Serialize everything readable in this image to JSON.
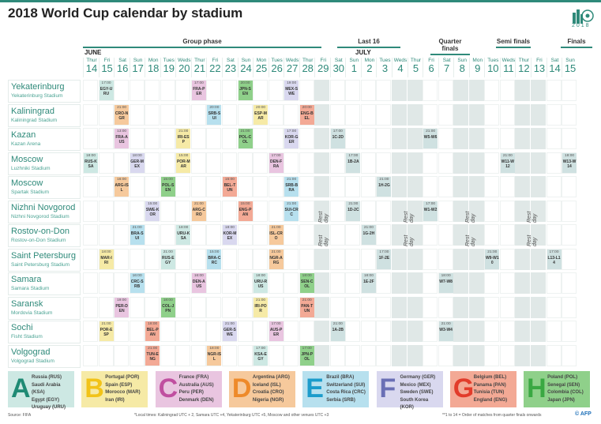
{
  "title": "2018 World Cup calendar by stadium",
  "logo_year": "2018",
  "phases": [
    "Group phase",
    "Last 16",
    "Quarter finals",
    "Semi finals",
    "Finals"
  ],
  "months": [
    "JUNE",
    "JULY"
  ],
  "rest_day_label": "Rest day",
  "colors": {
    "A": "#cde8e3",
    "B": "#f6eaa6",
    "C": "#e9c5e0",
    "D": "#f6c99c",
    "E": "#b7e0ee",
    "F": "#d9d8ef",
    "G": "#f3a995",
    "H": "#8fd08a",
    "KO": "#cfe1e1"
  },
  "legend_colors": {
    "A": "#1f8a74",
    "B": "#f2c318",
    "C": "#c04fa0",
    "D": "#ee8a2a",
    "E": "#1c9ccb",
    "F": "#6a6fb5",
    "G": "#e23c2b",
    "H": "#3aa842"
  },
  "chart_data": {
    "type": "table",
    "title": "2018 World Cup calendar by stadium",
    "days": [
      {
        "k": "J14",
        "name": "Thur",
        "num": "14"
      },
      {
        "k": "J15",
        "name": "Fri",
        "num": "15"
      },
      {
        "k": "J16",
        "name": "Sat",
        "num": "16"
      },
      {
        "k": "J17",
        "name": "Sun",
        "num": "17"
      },
      {
        "k": "J18",
        "name": "Mon",
        "num": "18"
      },
      {
        "k": "J19",
        "name": "Tues",
        "num": "19"
      },
      {
        "k": "J20",
        "name": "Weds",
        "num": "20"
      },
      {
        "k": "J21",
        "name": "Thur",
        "num": "21"
      },
      {
        "k": "J22",
        "name": "Fri",
        "num": "22"
      },
      {
        "k": "J23",
        "name": "Sat",
        "num": "23"
      },
      {
        "k": "J24",
        "name": "Sun",
        "num": "24"
      },
      {
        "k": "J25",
        "name": "Mon",
        "num": "25"
      },
      {
        "k": "J26",
        "name": "Tues",
        "num": "26"
      },
      {
        "k": "J27",
        "name": "Weds",
        "num": "27"
      },
      {
        "k": "J28",
        "name": "Thur",
        "num": "28"
      },
      {
        "k": "J29",
        "name": "Fri",
        "num": "29",
        "rest": true
      },
      {
        "k": "J30",
        "name": "Sat",
        "num": "30"
      },
      {
        "k": "L1",
        "name": "Sun",
        "num": "1"
      },
      {
        "k": "L2",
        "name": "Mon",
        "num": "2"
      },
      {
        "k": "L3",
        "name": "Tues",
        "num": "3"
      },
      {
        "k": "L4",
        "name": "Weds",
        "num": "4",
        "rest": true
      },
      {
        "k": "L5",
        "name": "Thur",
        "num": "5",
        "rest": true
      },
      {
        "k": "L6",
        "name": "Fri",
        "num": "6"
      },
      {
        "k": "L7",
        "name": "Sat",
        "num": "7"
      },
      {
        "k": "L8",
        "name": "Sun",
        "num": "8",
        "rest": true
      },
      {
        "k": "L9",
        "name": "Mon",
        "num": "9",
        "rest": true
      },
      {
        "k": "L10",
        "name": "Tues",
        "num": "10"
      },
      {
        "k": "L11",
        "name": "Weds",
        "num": "11"
      },
      {
        "k": "L12",
        "name": "Thur",
        "num": "12",
        "rest": true
      },
      {
        "k": "L13",
        "name": "Fri",
        "num": "13",
        "rest": true
      },
      {
        "k": "L14",
        "name": "Sat",
        "num": "14"
      },
      {
        "k": "L15",
        "name": "Sun",
        "num": "15"
      }
    ],
    "stadiums": [
      {
        "city": "Yekaterinburg",
        "stadium": "Yekaterinburg Stadium",
        "matches": [
          {
            "d": "J15",
            "t": "17:00",
            "m": "EGY-URU",
            "g": "A"
          },
          {
            "d": "J21",
            "t": "17:00",
            "m": "FRA-PER",
            "g": "C"
          },
          {
            "d": "J24",
            "t": "20:00",
            "m": "JPN-SEN",
            "g": "H"
          },
          {
            "d": "J27",
            "t": "19:00",
            "m": "MEX-SWE",
            "g": "F"
          }
        ]
      },
      {
        "city": "Kaliningrad",
        "stadium": "Kaliningrad Stadium",
        "matches": [
          {
            "d": "J16",
            "t": "21:00",
            "m": "CRO-NGR",
            "g": "D"
          },
          {
            "d": "J22",
            "t": "20:00",
            "m": "SRB-SUI",
            "g": "E"
          },
          {
            "d": "J25",
            "t": "20:00",
            "m": "ESP-MAR",
            "g": "B"
          },
          {
            "d": "J28",
            "t": "20:00",
            "m": "ENG-BEL",
            "g": "G"
          }
        ]
      },
      {
        "city": "Kazan",
        "stadium": "Kazan Arena",
        "matches": [
          {
            "d": "J16",
            "t": "13:00",
            "m": "FRA-AUS",
            "g": "C"
          },
          {
            "d": "J20",
            "t": "21:00",
            "m": "IRI-ESP",
            "g": "B"
          },
          {
            "d": "J24",
            "t": "21:00",
            "m": "POL-COL",
            "g": "H"
          },
          {
            "d": "J27",
            "t": "17:00",
            "m": "KOR-GER",
            "g": "F"
          },
          {
            "d": "J30",
            "t": "17:00",
            "m": "1C-2D",
            "g": "KO"
          },
          {
            "d": "L6",
            "t": "21:00",
            "m": "W5-W6",
            "g": "KO"
          }
        ]
      },
      {
        "city": "Moscow",
        "stadium": "Luzhniki Stadium",
        "matches": [
          {
            "d": "J14",
            "t": "18:00",
            "m": "RUS-KSA",
            "g": "A"
          },
          {
            "d": "J17",
            "t": "18:00",
            "m": "GER-MEX",
            "g": "F"
          },
          {
            "d": "J20",
            "t": "15:00",
            "m": "POR-MAR",
            "g": "B"
          },
          {
            "d": "J26",
            "t": "17:00",
            "m": "DEN-FRA",
            "g": "C"
          },
          {
            "d": "L1",
            "t": "17:00",
            "m": "1B-2A",
            "g": "KO"
          },
          {
            "d": "L11",
            "t": "21:00",
            "m": "W11-W12",
            "g": "KO"
          },
          {
            "d": "L15",
            "t": "18:00",
            "m": "W13-W14",
            "g": "KO"
          }
        ]
      },
      {
        "city": "Moscow",
        "stadium": "Spartak Stadium",
        "matches": [
          {
            "d": "J16",
            "t": "16:00",
            "m": "ARG-ISL",
            "g": "D"
          },
          {
            "d": "J19",
            "t": "15:00",
            "m": "POL-SEN",
            "g": "H"
          },
          {
            "d": "J23",
            "t": "15:00",
            "m": "BEL-TUN",
            "g": "G"
          },
          {
            "d": "J27",
            "t": "21:00",
            "m": "SRB-BRA",
            "g": "E"
          },
          {
            "d": "L3",
            "t": "21:00",
            "m": "1H-2G",
            "g": "KO"
          }
        ]
      },
      {
        "city": "Nizhni Novgorod",
        "stadium": "Nizhni Novgorod Stadium",
        "rest_labels": true,
        "matches": [
          {
            "d": "J18",
            "t": "15:00",
            "m": "SWE-KOR",
            "g": "F"
          },
          {
            "d": "J21",
            "t": "21:00",
            "m": "ARG-CRO",
            "g": "D"
          },
          {
            "d": "J24",
            "t": "15:00",
            "m": "ENG-PAN",
            "g": "G"
          },
          {
            "d": "J27",
            "t": "21:00",
            "m": "SUI-CRC",
            "g": "E"
          },
          {
            "d": "L1",
            "t": "21:00",
            "m": "1D-2C",
            "g": "KO"
          },
          {
            "d": "L6",
            "t": "17:00",
            "m": "W1-W2",
            "g": "KO"
          }
        ]
      },
      {
        "city": "Rostov-on-Don",
        "stadium": "Rostov-on-Don Stadium",
        "matches": [
          {
            "d": "J17",
            "t": "21:00",
            "m": "BRA-SUI",
            "g": "E"
          },
          {
            "d": "J20",
            "t": "18:00",
            "m": "URU-KSA",
            "g": "A"
          },
          {
            "d": "J23",
            "t": "18:00",
            "m": "KOR-MEX",
            "g": "F"
          },
          {
            "d": "J26",
            "t": "21:00",
            "m": "ISL-CRO",
            "g": "D"
          },
          {
            "d": "L2",
            "t": "21:00",
            "m": "1G-2H",
            "g": "KO"
          }
        ]
      },
      {
        "city": "Saint Petersburg",
        "stadium": "Saint Petersburg Stadium",
        "matches": [
          {
            "d": "J15",
            "t": "18:00",
            "m": "MAR-IRI",
            "g": "B"
          },
          {
            "d": "J19",
            "t": "21:00",
            "m": "RUS-EGY",
            "g": "A"
          },
          {
            "d": "J22",
            "t": "15:00",
            "m": "BRA-CRC",
            "g": "E"
          },
          {
            "d": "J26",
            "t": "21:00",
            "m": "NGR-ARG",
            "g": "D"
          },
          {
            "d": "L3",
            "t": "17:00",
            "m": "1F-2E",
            "g": "KO"
          },
          {
            "d": "L10",
            "t": "21:00",
            "m": "W9-W10",
            "g": "KO"
          },
          {
            "d": "L14",
            "t": "17:00",
            "m": "L13-L14",
            "g": "KO"
          }
        ]
      },
      {
        "city": "Samara",
        "stadium": "Samara Stadium",
        "matches": [
          {
            "d": "J17",
            "t": "16:00",
            "m": "CRC-SRB",
            "g": "E"
          },
          {
            "d": "J21",
            "t": "16:00",
            "m": "DEN-AUS",
            "g": "C"
          },
          {
            "d": "J25",
            "t": "18:00",
            "m": "URU-RUS",
            "g": "A"
          },
          {
            "d": "J28",
            "t": "18:00",
            "m": "SEN-COL",
            "g": "H"
          },
          {
            "d": "L2",
            "t": "18:00",
            "m": "1E-2F",
            "g": "KO"
          },
          {
            "d": "L7",
            "t": "18:00",
            "m": "W7-W8",
            "g": "KO"
          }
        ]
      },
      {
        "city": "Saransk",
        "stadium": "Mordovia Stadium",
        "matches": [
          {
            "d": "J16",
            "t": "19:00",
            "m": "PER-DEN",
            "g": "C"
          },
          {
            "d": "J19",
            "t": "18:00",
            "m": "COL-JPN",
            "g": "H"
          },
          {
            "d": "J25",
            "t": "21:00",
            "m": "IRI-POR",
            "g": "B"
          },
          {
            "d": "J28",
            "t": "21:00",
            "m": "PAN-TUN",
            "g": "G"
          }
        ]
      },
      {
        "city": "Sochi",
        "stadium": "Fisht Stadium",
        "matches": [
          {
            "d": "J15",
            "t": "21:00",
            "m": "POR-ESP",
            "g": "B"
          },
          {
            "d": "J18",
            "t": "18:00",
            "m": "BEL-PAN",
            "g": "G"
          },
          {
            "d": "J23",
            "t": "21:00",
            "m": "GER-SWE",
            "g": "F"
          },
          {
            "d": "J26",
            "t": "17:00",
            "m": "AUS-PER",
            "g": "C"
          },
          {
            "d": "J30",
            "t": "21:00",
            "m": "1A-2B",
            "g": "KO"
          },
          {
            "d": "L7",
            "t": "21:00",
            "m": "W3-W4",
            "g": "KO"
          }
        ]
      },
      {
        "city": "Volgograd",
        "stadium": "Volgograd Stadium",
        "matches": [
          {
            "d": "J18",
            "t": "21:00",
            "m": "TUN-ENG",
            "g": "G"
          },
          {
            "d": "J22",
            "t": "18:00",
            "m": "NGR-ISL",
            "g": "D"
          },
          {
            "d": "J25",
            "t": "17:00",
            "m": "KSA-EGY",
            "g": "A"
          },
          {
            "d": "J28",
            "t": "17:00",
            "m": "JPN-POL",
            "g": "H"
          }
        ]
      }
    ]
  },
  "groups": [
    {
      "letter": "A",
      "teams": [
        "Russia (RUS)",
        "Saudi Arabia (KSA)",
        "Egypt (EGY)",
        "Uruguay (URU)"
      ]
    },
    {
      "letter": "B",
      "teams": [
        "Portugal (POR)",
        "Spain (ESP)",
        "Morocco (MAR)",
        "Iran (IRI)"
      ]
    },
    {
      "letter": "C",
      "teams": [
        "France (FRA)",
        "Australia (AUS)",
        "Peru (PER)",
        "Denmark (DEN)"
      ]
    },
    {
      "letter": "D",
      "teams": [
        "Argentina (ARG)",
        "Iceland (ISL)",
        "Croatia (CRO)",
        "Nigeria (NGR)"
      ]
    },
    {
      "letter": "E",
      "teams": [
        "Brazil (BRA)",
        "Switzerland (SUI)",
        "Costa Rica (CRC)",
        "Serbia (SRB)"
      ]
    },
    {
      "letter": "F",
      "teams": [
        "Germany (GER)",
        "Mexico (MEX)",
        "Sweden (SWE)",
        "South Korea (KOR)"
      ]
    },
    {
      "letter": "G",
      "teams": [
        "Belgium (BEL)",
        "Panama (PAN)",
        "Tunisia (TUN)",
        "England (ENG)"
      ]
    },
    {
      "letter": "H",
      "teams": [
        "Poland (POL)",
        "Senegal (SEN)",
        "Colombia (COL)",
        "Japan (JPN)"
      ]
    }
  ],
  "footer": {
    "source": "Source: FIFA",
    "note1": "*Local times: Kaliningrad UTC + 2, Samara UTC +4, Yekaterinburg UTC +5, Moscow and other venues UTC +3",
    "note2": "**1 to 14 = Order of matches from quarter finals onwards",
    "credit": "© AFP"
  }
}
